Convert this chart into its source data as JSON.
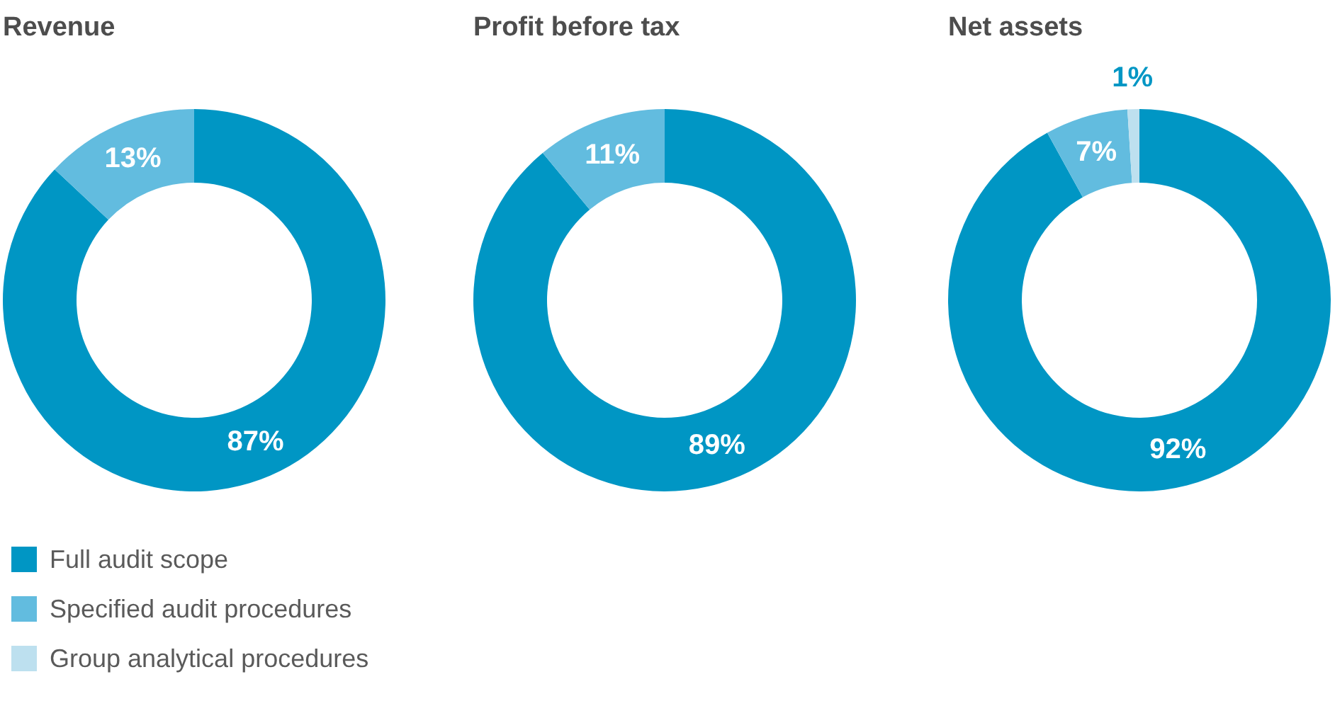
{
  "chart_data": [
    {
      "type": "donut",
      "title": "Revenue",
      "values": [
        87,
        13
      ],
      "colors": [
        "#0096c4",
        "#62bcdf"
      ],
      "value_labels": [
        "87%",
        "13%"
      ]
    },
    {
      "type": "donut",
      "title": "Profit before tax",
      "values": [
        89,
        11
      ],
      "colors": [
        "#0096c4",
        "#62bcdf"
      ],
      "value_labels": [
        "89%",
        "11%"
      ]
    },
    {
      "type": "donut",
      "title": "Net assets",
      "categories": [
        "Full audit scope",
        "Specified audit procedures",
        "Group analytical procedures"
      ],
      "values": [
        92,
        7,
        1
      ],
      "colors": [
        "#0096c4",
        "#62bcdf",
        "#bde0ef"
      ],
      "value_labels": [
        "92%",
        "7%",
        "1%"
      ],
      "legend": "bottom left"
    }
  ]
}
